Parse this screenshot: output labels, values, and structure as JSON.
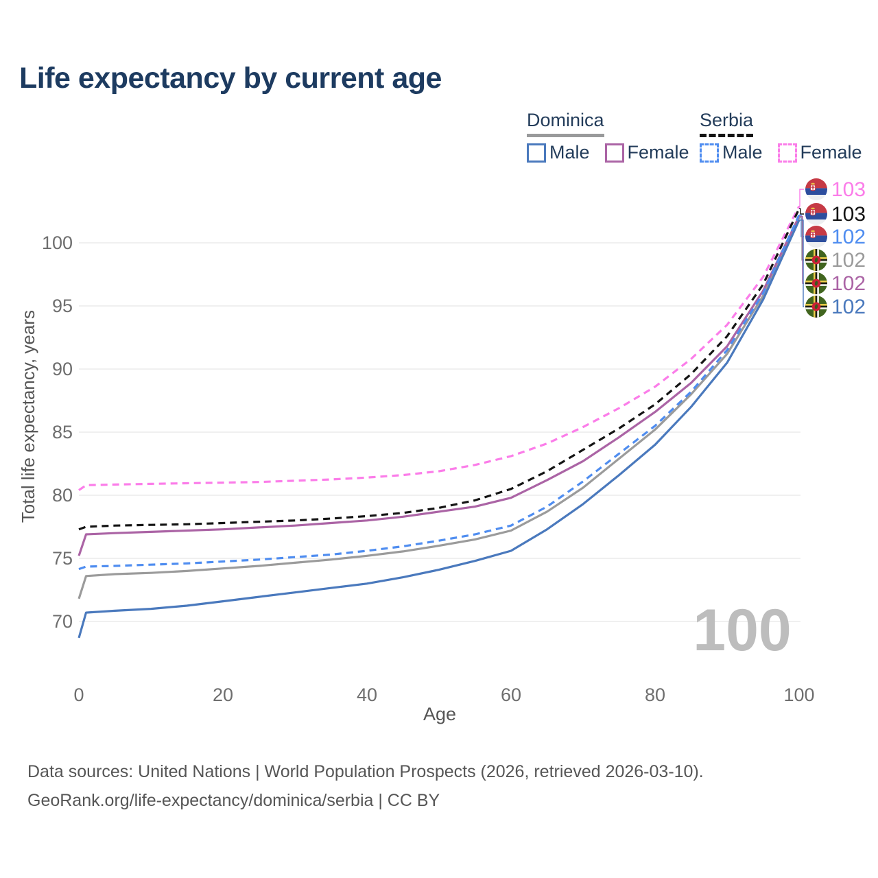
{
  "title": "Life expectancy by current age",
  "legend": {
    "groups": [
      {
        "label": "Dominica",
        "line_style": "solid",
        "line_color": "#999a9b",
        "items": [
          {
            "label": "Male",
            "color": "#4a79bd",
            "dashed": false
          },
          {
            "label": "Female",
            "color": "#ab64a5",
            "dashed": false
          }
        ]
      },
      {
        "label": "Serbia",
        "line_style": "dashed",
        "line_color": "#141414",
        "items": [
          {
            "label": "Male",
            "color": "#4f8df0",
            "dashed": true
          },
          {
            "label": "Female",
            "color": "#fb7de9",
            "dashed": true
          }
        ]
      }
    ]
  },
  "watermark": "100",
  "footer": {
    "line1": "Data sources: United Nations | World Population Prospects (2026, retrieved 2026-03-10).",
    "line2": "GeoRank.org/life-expectancy/dominica/serbia | CC BY"
  },
  "chart_data": {
    "type": "line",
    "title": "Life expectancy by current age",
    "xlabel": "Age",
    "ylabel": "Total life expectancy, years",
    "xlim": [
      0,
      100
    ],
    "ylim": [
      67,
      104
    ],
    "x_ticks": [
      0,
      20,
      40,
      60,
      80,
      100
    ],
    "y_ticks": [
      70,
      75,
      80,
      85,
      90,
      95,
      100
    ],
    "grid": "horizontal",
    "legend_position": "top-right",
    "x": [
      0,
      1,
      5,
      10,
      15,
      20,
      25,
      30,
      35,
      40,
      45,
      50,
      55,
      60,
      65,
      70,
      75,
      80,
      85,
      90,
      95,
      100
    ],
    "series": [
      {
        "id": "serbia-female",
        "country": "Serbia",
        "sex": "Female",
        "color": "#fb7de9",
        "dashed": true,
        "end_label": "103",
        "flag_icon": "serbia-flag-icon",
        "label_row": 0,
        "values": [
          80.4,
          80.8,
          80.85,
          80.9,
          80.95,
          81.0,
          81.05,
          81.15,
          81.25,
          81.4,
          81.6,
          81.9,
          82.4,
          83.1,
          84.1,
          85.4,
          86.9,
          88.6,
          90.8,
          93.5,
          97.3,
          102.9
        ]
      },
      {
        "id": "serbia-total",
        "country": "Serbia",
        "sex": "All",
        "color": "#141414",
        "dashed": true,
        "end_label": "103",
        "flag_icon": "serbia-flag-icon",
        "label_row": 1,
        "values": [
          77.3,
          77.5,
          77.6,
          77.65,
          77.7,
          77.8,
          77.9,
          78.0,
          78.15,
          78.35,
          78.6,
          79.0,
          79.6,
          80.5,
          81.9,
          83.6,
          85.3,
          87.2,
          89.6,
          92.6,
          96.7,
          102.7
        ]
      },
      {
        "id": "serbia-male",
        "country": "Serbia",
        "sex": "Male",
        "color": "#4f8df0",
        "dashed": true,
        "end_label": "102",
        "flag_icon": "serbia-flag-icon",
        "label_row": 2,
        "values": [
          74.15,
          74.35,
          74.4,
          74.5,
          74.6,
          74.75,
          74.9,
          75.1,
          75.3,
          75.6,
          75.95,
          76.4,
          76.9,
          77.6,
          79.1,
          81.1,
          83.3,
          85.5,
          88.2,
          91.5,
          96.0,
          102.2
        ]
      },
      {
        "id": "dominica-total",
        "country": "Dominica",
        "sex": "All",
        "color": "#9b9b9b",
        "dashed": false,
        "end_label": "102",
        "flag_icon": "dominica-flag-icon",
        "label_row": 3,
        "values": [
          71.8,
          73.6,
          73.75,
          73.85,
          74.0,
          74.2,
          74.4,
          74.65,
          74.9,
          75.2,
          75.55,
          76.0,
          76.5,
          77.2,
          78.7,
          80.6,
          82.9,
          85.2,
          88.0,
          91.2,
          95.8,
          102.0
        ]
      },
      {
        "id": "dominica-female",
        "country": "Dominica",
        "sex": "Female",
        "color": "#ab64a5",
        "dashed": false,
        "end_label": "102",
        "flag_icon": "dominica-flag-icon",
        "label_row": 4,
        "values": [
          75.2,
          76.9,
          77.0,
          77.1,
          77.2,
          77.3,
          77.45,
          77.6,
          77.8,
          78.0,
          78.3,
          78.7,
          79.1,
          79.8,
          81.2,
          82.7,
          84.6,
          86.6,
          88.9,
          91.8,
          96.2,
          102.1
        ]
      },
      {
        "id": "dominica-male",
        "country": "Dominica",
        "sex": "Male",
        "color": "#4a79bd",
        "dashed": false,
        "end_label": "102",
        "flag_icon": "dominica-flag-icon",
        "label_row": 5,
        "values": [
          68.7,
          70.7,
          70.85,
          71.0,
          71.25,
          71.6,
          71.95,
          72.3,
          72.65,
          73.0,
          73.5,
          74.1,
          74.8,
          75.6,
          77.3,
          79.3,
          81.6,
          84.0,
          87.0,
          90.5,
          95.5,
          101.8
        ]
      }
    ]
  }
}
